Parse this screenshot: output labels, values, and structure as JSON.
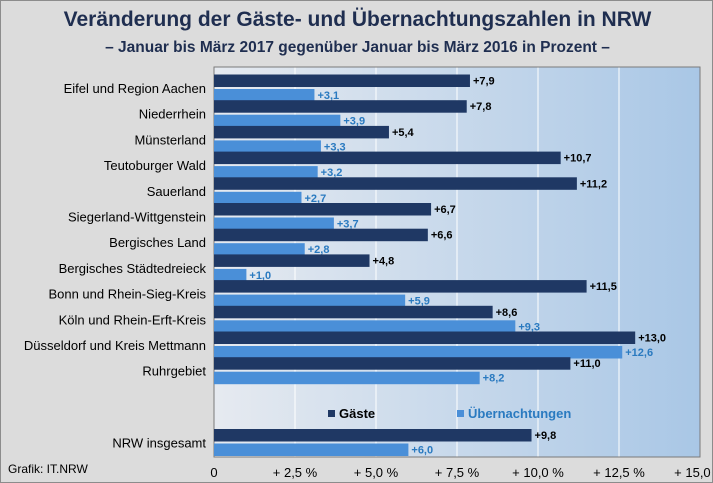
{
  "title": "Veränderung der Gäste- und Übernachtungszahlen in NRW",
  "subtitle": "– Januar bis März 2017 gegenüber Januar bis März 2016 in Prozent –",
  "source": "Grafik: IT.NRW",
  "colors": {
    "gaeste": "#1f3864",
    "uebernachtungen": "#4a8fd8",
    "uebernachtungen_label": "#2a7ac0",
    "plot_bg_left": "#e6eaf0",
    "plot_bg_right": "#a9c7e6"
  },
  "chart_data": {
    "type": "bar",
    "orientation": "horizontal",
    "categories": [
      "Eifel und Region Aachen",
      "Niederrhein",
      "Münsterland",
      "Teutoburger Wald",
      "Sauerland",
      "Siegerland-Wittgenstein",
      "Bergisches Land",
      "Bergisches Städtedreieck",
      "Bonn und Rhein-Sieg-Kreis",
      "Köln und Rhein-Erft-Kreis",
      "Düsseldorf und Kreis Mettmann",
      "Ruhrgebiet",
      "NRW insgesamt"
    ],
    "series": [
      {
        "name": "Gäste",
        "values": [
          7.9,
          7.8,
          5.4,
          10.7,
          11.2,
          6.7,
          6.6,
          4.8,
          11.5,
          8.6,
          13.0,
          11.0,
          9.8
        ],
        "labels": [
          "+7,9",
          "+7,8",
          "+5,4",
          "+10,7",
          "+11,2",
          "+6,7",
          "+6,6",
          "+4,8",
          "+11,5",
          "+8,6",
          "+13,0",
          "+11,0",
          "+9,8"
        ]
      },
      {
        "name": "Übernachtungen",
        "values": [
          3.1,
          3.9,
          3.3,
          3.2,
          2.7,
          3.7,
          2.8,
          1.0,
          5.9,
          9.3,
          12.6,
          8.2,
          6.0
        ],
        "labels": [
          "+3,1",
          "+3,9",
          "+3,3",
          "+3,2",
          "+2,7",
          "+3,7",
          "+2,8",
          "+1,0",
          "+5,9",
          "+9,3",
          "+12,6",
          "+8,2",
          "+6,0"
        ]
      }
    ],
    "xlim": [
      0,
      15
    ],
    "xticks": [
      0,
      2.5,
      5,
      7.5,
      10,
      12.5,
      15
    ],
    "xtick_labels": [
      "0",
      "+ 2,5 %",
      "+ 5,0 %",
      "+ 7,5 %",
      "+ 10,0 %",
      "+ 12,5 %",
      "+ 15,0 %"
    ],
    "grid": true,
    "legend": {
      "position": "bottom-right",
      "items": [
        "Gäste",
        "Übernachtungen"
      ]
    }
  }
}
